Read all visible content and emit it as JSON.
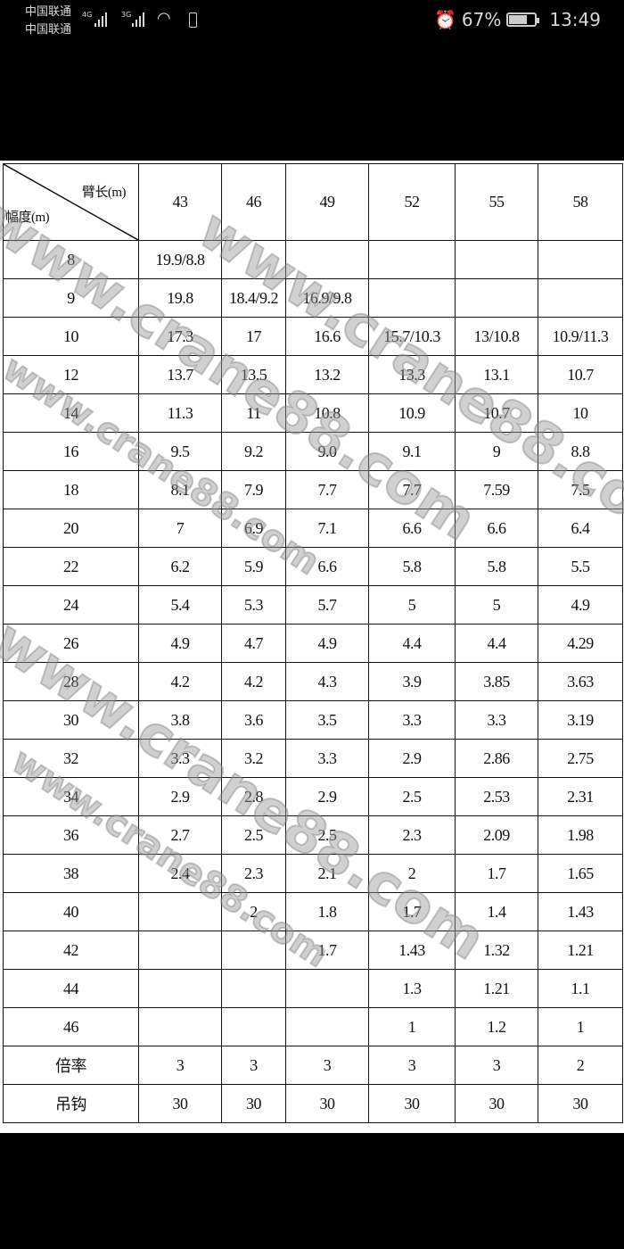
{
  "status_bar": {
    "carrier1": "中国联通",
    "carrier2": "中国联通",
    "net1": "4G",
    "net2": "3G",
    "battery_percent": "67%",
    "time": "13:49",
    "icons": [
      "signal-icon",
      "wifi-icon",
      "battery-saver-icon",
      "alarm-icon",
      "battery-icon"
    ]
  },
  "table": {
    "corner_top": "臂长(m)",
    "corner_bottom": "幅度(m)",
    "columns": [
      "43",
      "46",
      "49",
      "52",
      "55",
      "58"
    ],
    "rows": [
      {
        "label": "8",
        "cells": [
          "19.9/8.8",
          "",
          "",
          "",
          "",
          ""
        ]
      },
      {
        "label": "9",
        "cells": [
          "19.8",
          "18.4/9.2",
          "16.9/9.8",
          "",
          "",
          ""
        ]
      },
      {
        "label": "10",
        "cells": [
          "17.3",
          "17",
          "16.6",
          "15.7/10.3",
          "13/10.8",
          "10.9/11.3"
        ]
      },
      {
        "label": "12",
        "cells": [
          "13.7",
          "13.5",
          "13.2",
          "13.3",
          "13.1",
          "10.7"
        ]
      },
      {
        "label": "14",
        "cells": [
          "11.3",
          "11",
          "10.8",
          "10.9",
          "10.7",
          "10"
        ]
      },
      {
        "label": "16",
        "cells": [
          "9.5",
          "9.2",
          "9.0",
          "9.1",
          "9",
          "8.8"
        ]
      },
      {
        "label": "18",
        "cells": [
          "8.1",
          "7.9",
          "7.7",
          "7.7",
          "7.59",
          "7.5"
        ]
      },
      {
        "label": "20",
        "cells": [
          "7",
          "6.9",
          "7.1",
          "6.6",
          "6.6",
          "6.4"
        ]
      },
      {
        "label": "22",
        "cells": [
          "6.2",
          "5.9",
          "6.6",
          "5.8",
          "5.8",
          "5.5"
        ]
      },
      {
        "label": "24",
        "cells": [
          "5.4",
          "5.3",
          "5.7",
          "5",
          "5",
          "4.9"
        ]
      },
      {
        "label": "26",
        "cells": [
          "4.9",
          "4.7",
          "4.9",
          "4.4",
          "4.4",
          "4.29"
        ]
      },
      {
        "label": "28",
        "cells": [
          "4.2",
          "4.2",
          "4.3",
          "3.9",
          "3.85",
          "3.63"
        ]
      },
      {
        "label": "30",
        "cells": [
          "3.8",
          "3.6",
          "3.5",
          "3.3",
          "3.3",
          "3.19"
        ]
      },
      {
        "label": "32",
        "cells": [
          "3.3",
          "3.2",
          "3.3",
          "2.9",
          "2.86",
          "2.75"
        ]
      },
      {
        "label": "34",
        "cells": [
          "2.9",
          "2.8",
          "2.9",
          "2.5",
          "2.53",
          "2.31"
        ]
      },
      {
        "label": "36",
        "cells": [
          "2.7",
          "2.5",
          "2.5",
          "2.3",
          "2.09",
          "1.98"
        ]
      },
      {
        "label": "38",
        "cells": [
          "2.4",
          "2.3",
          "2.1",
          "2",
          "1.7",
          "1.65"
        ]
      },
      {
        "label": "40",
        "cells": [
          "",
          "2",
          "1.8",
          "1.7",
          "1.4",
          "1.43"
        ]
      },
      {
        "label": "42",
        "cells": [
          "",
          "",
          "1.7",
          "1.43",
          "1.32",
          "1.21"
        ]
      },
      {
        "label": "44",
        "cells": [
          "",
          "",
          "",
          "1.3",
          "1.21",
          "1.1"
        ]
      },
      {
        "label": "46",
        "cells": [
          "",
          "",
          "",
          "1",
          "1.2",
          "1"
        ]
      },
      {
        "label": "倍率",
        "cells": [
          "3",
          "3",
          "3",
          "3",
          "3",
          "2"
        ]
      },
      {
        "label": "吊钩",
        "cells": [
          "30",
          "30",
          "30",
          "30",
          "30",
          "30"
        ]
      }
    ]
  },
  "watermark": "www.crane88.com"
}
